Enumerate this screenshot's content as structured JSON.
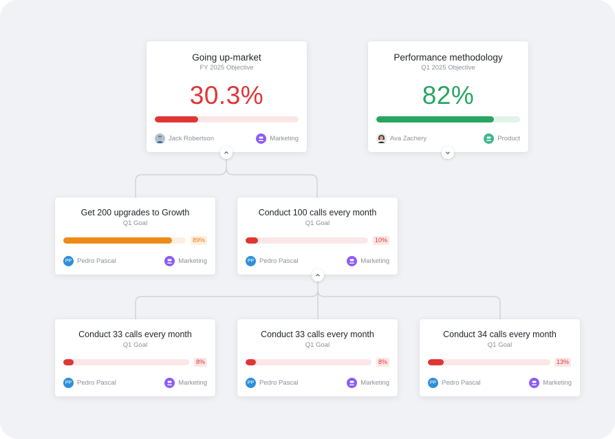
{
  "colors": {
    "red": "#e03535",
    "red_track": "#fbe7e7",
    "green": "#27a562",
    "green_track": "#e2f3ea",
    "orange": "#ee8a16",
    "orange_track": "#fdf0e0",
    "marketing": "#8b5cf6",
    "product": "#3cb88a",
    "owner_avatar": "#2d8fd8"
  },
  "objectives": [
    {
      "title": "Going up-market",
      "subtitle": "FY 2025 Objective",
      "value": "30.3%",
      "progress": 0.303,
      "color": "red",
      "owner": "Jack Robertson",
      "team": "Marketing",
      "toggle": "chevron-up-icon"
    },
    {
      "title": "Performance methodology",
      "subtitle": "Q1 2025 Objective",
      "value": "82%",
      "progress": 0.82,
      "color": "green",
      "owner": "Ava Zachery",
      "team": "Product",
      "toggle": "chevron-down-icon"
    }
  ],
  "goals": [
    {
      "title": "Get 200 upgrades to Growth",
      "subtitle": "Q1 Goal",
      "pct": "89%",
      "progress": 0.89,
      "color": "orange",
      "owner_initials": "PP",
      "owner": "Pedro Pascal",
      "team": "Marketing"
    },
    {
      "title": "Conduct 100 calls every month",
      "subtitle": "Q1 Goal",
      "pct": "10%",
      "progress": 0.1,
      "color": "red",
      "owner_initials": "PP",
      "owner": "Pedro Pascal",
      "team": "Marketing",
      "toggle": "chevron-up-icon"
    },
    {
      "title": "Conduct 33 calls every month",
      "subtitle": "Q1 Goal",
      "pct": "8%",
      "progress": 0.08,
      "color": "red",
      "owner_initials": "PP",
      "owner": "Pedro Pascal",
      "team": "Marketing"
    },
    {
      "title": "Conduct 33 calls every month",
      "subtitle": "Q1 Goal",
      "pct": "8%",
      "progress": 0.08,
      "color": "red",
      "owner_initials": "PP",
      "owner": "Pedro Pascal",
      "team": "Marketing"
    },
    {
      "title": "Conduct 34 calls every month",
      "subtitle": "Q1 Goal",
      "pct": "13%",
      "progress": 0.13,
      "color": "red",
      "owner_initials": "PP",
      "owner": "Pedro Pascal",
      "team": "Marketing"
    }
  ]
}
